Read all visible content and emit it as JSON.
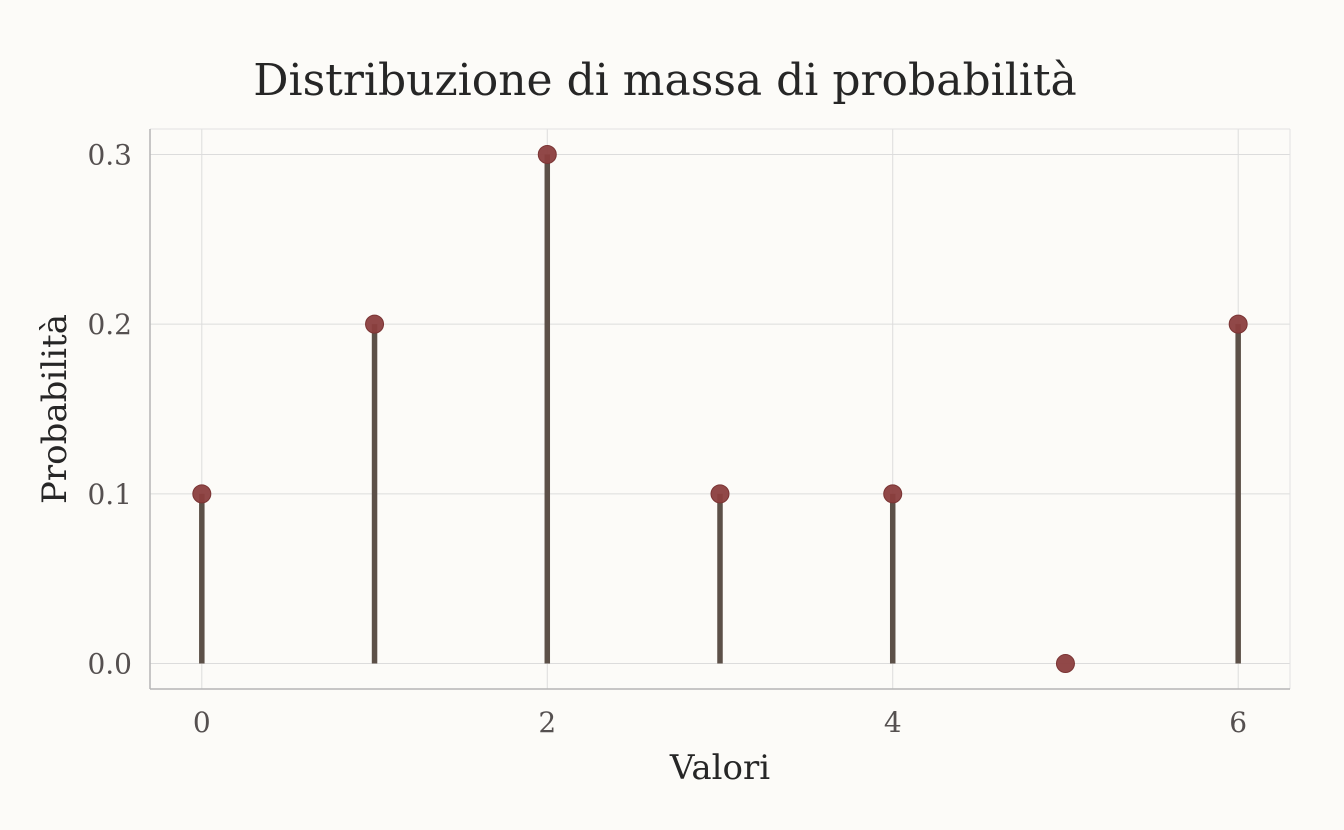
{
  "chart_data": {
    "type": "stem",
    "title": "Distribuzione di massa di probabilità",
    "xlabel": "Valori",
    "ylabel": "Probabilità",
    "x": [
      0,
      1,
      2,
      3,
      4,
      5,
      6
    ],
    "values": [
      0.1,
      0.2,
      0.3,
      0.1,
      0.1,
      0.0,
      0.2
    ],
    "xlim": [
      -0.3,
      6.3
    ],
    "ylim": [
      -0.015,
      0.315
    ],
    "xticks": [
      0,
      2,
      4,
      6
    ],
    "xtick_labels": [
      "0",
      "2",
      "4",
      "6"
    ],
    "yticks": [
      0.0,
      0.1,
      0.2,
      0.3
    ],
    "ytick_labels": [
      "0.0",
      "0.1",
      "0.2",
      "0.3"
    ],
    "grid": true,
    "colors": {
      "stem": "#5c5048",
      "marker": "#8b3e3e",
      "background": "#fcfbf8",
      "grid": "#dcdcdc"
    }
  }
}
